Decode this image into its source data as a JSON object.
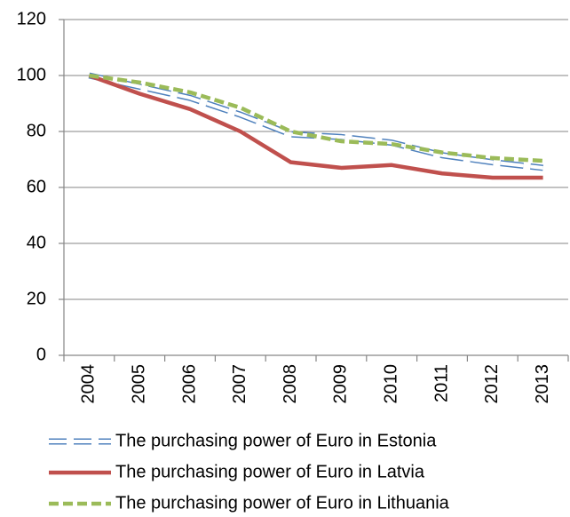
{
  "chart_data": {
    "type": "line",
    "categories": [
      "2004",
      "2005",
      "2006",
      "2007",
      "2008",
      "2009",
      "2010",
      "2011",
      "2012",
      "2013"
    ],
    "series": [
      {
        "name": "The purchasing power of Euro in Estonia",
        "color": "#4f81bd",
        "values": [
          100,
          96,
          92,
          86,
          79,
          78,
          76,
          71.5,
          69,
          67
        ]
      },
      {
        "name": "The purchasing power of Euro in Latvia",
        "color": "#c0504d",
        "values": [
          100,
          93.5,
          88,
          80,
          69,
          67,
          68,
          65,
          63.5,
          63.5
        ]
      },
      {
        "name": "The purchasing power of Euro in Lithuania",
        "color": "#9bbb59",
        "values": [
          100,
          97.5,
          94,
          88.5,
          80,
          76.5,
          75.5,
          72.5,
          70.5,
          69.5
        ]
      }
    ],
    "ylim": [
      0,
      120
    ],
    "yticks": [
      0,
      20,
      40,
      60,
      80,
      100,
      120
    ],
    "grid": true
  }
}
